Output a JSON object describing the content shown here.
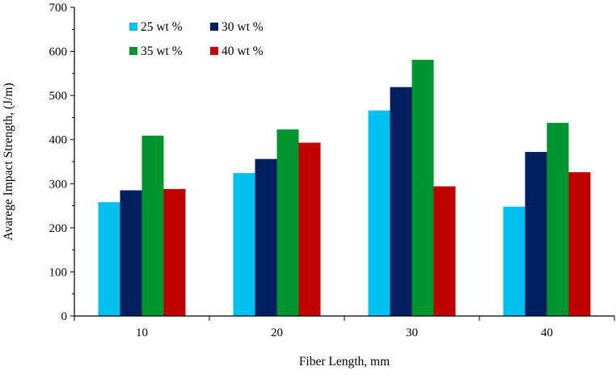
{
  "chart_data": {
    "type": "bar",
    "title": "",
    "xlabel": "Fiber Length, mm",
    "ylabel": "Avarege Impact Strength, (J/m)",
    "categories": [
      "10",
      "20",
      "30",
      "40"
    ],
    "series": [
      {
        "name": "25 wt %",
        "color": "#00c0ef",
        "values": [
          258,
          324,
          466,
          248
        ]
      },
      {
        "name": "30 wt %",
        "color": "#002060",
        "values": [
          285,
          356,
          519,
          372
        ]
      },
      {
        "name": "35 wt %",
        "color": "#00952e",
        "values": [
          409,
          423,
          581,
          438
        ]
      },
      {
        "name": "40 wt %",
        "color": "#c00000",
        "values": [
          288,
          393,
          294,
          326
        ]
      }
    ],
    "ylim": [
      0,
      700
    ],
    "yticks": [
      0,
      100,
      200,
      300,
      400,
      500,
      600,
      700
    ],
    "grid": false,
    "legend": "top-left"
  }
}
